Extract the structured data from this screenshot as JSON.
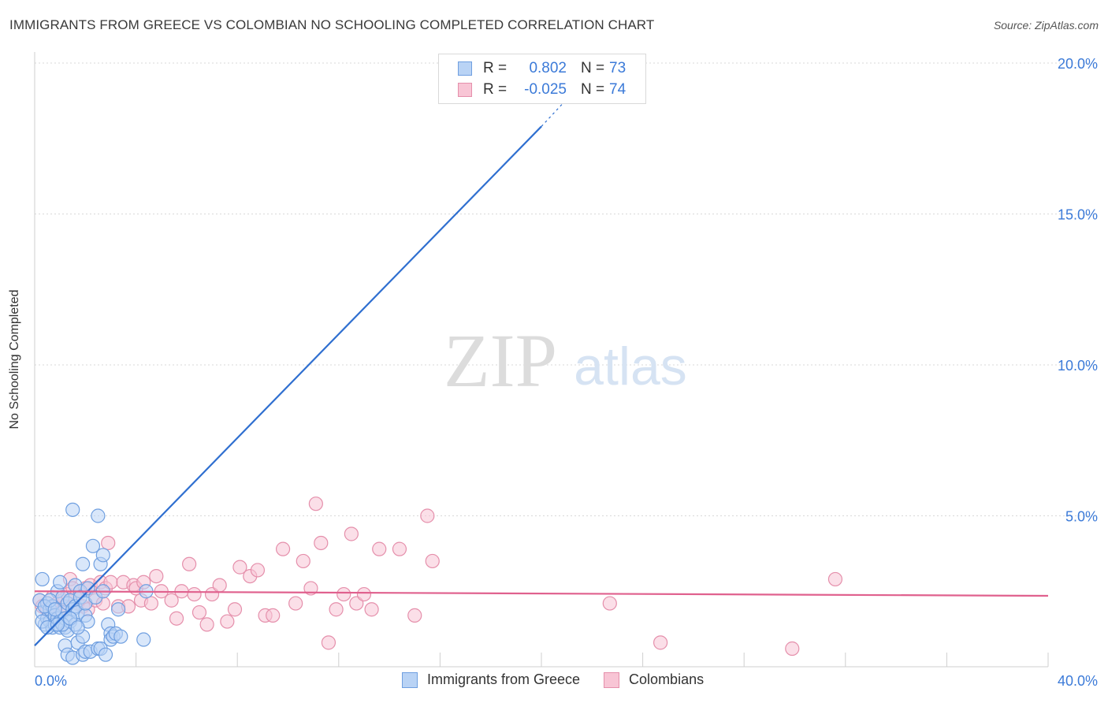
{
  "title": "IMMIGRANTS FROM GREECE VS COLOMBIAN NO SCHOOLING COMPLETED CORRELATION CHART",
  "source": "Source: ZipAtlas.com",
  "legend": {
    "r_label": "R =",
    "n_label": "N =",
    "rows": [
      {
        "r": "0.802",
        "n": "73",
        "fill": "#b9d3f5",
        "stroke": "#6f9fe0"
      },
      {
        "r": "-0.025",
        "n": "74",
        "fill": "#f8c5d5",
        "stroke": "#e58fab"
      }
    ]
  },
  "watermark": {
    "zip": "ZIP",
    "atlas": "atlas"
  },
  "bottom_legend": [
    {
      "label": "Immigrants from Greece",
      "fill": "#b9d3f5",
      "stroke": "#6f9fe0"
    },
    {
      "label": "Colombians",
      "fill": "#f8c5d5",
      "stroke": "#e58fab"
    }
  ],
  "chart_data": {
    "type": "scatter",
    "title": "IMMIGRANTS FROM GREECE VS COLOMBIAN NO SCHOOLING COMPLETED CORRELATION CHART",
    "xlabel": "",
    "ylabel": "No Schooling Completed",
    "xlim": [
      0,
      40
    ],
    "ylim": [
      0,
      20
    ],
    "x_tick_labels": [
      {
        "value": 0,
        "label": "0.0%"
      },
      {
        "value": 40,
        "label": "40.0%"
      }
    ],
    "y_ticks": [
      {
        "value": 5,
        "label": "5.0%"
      },
      {
        "value": 10,
        "label": "10.0%"
      },
      {
        "value": 15,
        "label": "15.0%"
      },
      {
        "value": 20,
        "label": "20.0%"
      }
    ],
    "x_grid": [
      4,
      8,
      12,
      16,
      20,
      24,
      28,
      32,
      36,
      40
    ],
    "series": [
      {
        "name": "Immigrants from Greece",
        "color": "#6f9fe0",
        "fill": "#b9d3f5",
        "line_color": "#2f6fd0",
        "trend": {
          "x0": 0,
          "y0": 0.7,
          "x1": 20.0,
          "y1": 17.9,
          "dash_to_x": 21.0,
          "dash_to_y": 18.8
        },
        "points": [
          [
            0.2,
            2.2
          ],
          [
            0.3,
            1.8
          ],
          [
            0.3,
            2.9
          ],
          [
            0.4,
            1.4
          ],
          [
            0.5,
            1.6
          ],
          [
            0.5,
            2.1
          ],
          [
            0.6,
            1.9
          ],
          [
            0.6,
            1.5
          ],
          [
            0.7,
            1.3
          ],
          [
            0.7,
            2.0
          ],
          [
            0.8,
            1.7
          ],
          [
            0.8,
            1.4
          ],
          [
            0.9,
            1.6
          ],
          [
            0.9,
            2.5
          ],
          [
            1.0,
            1.3
          ],
          [
            1.0,
            2.8
          ],
          [
            1.0,
            1.5
          ],
          [
            1.1,
            1.8
          ],
          [
            1.1,
            2.3
          ],
          [
            1.2,
            1.3
          ],
          [
            1.2,
            0.7
          ],
          [
            1.2,
            1.6
          ],
          [
            1.3,
            1.2
          ],
          [
            1.3,
            2.1
          ],
          [
            1.3,
            0.4
          ],
          [
            1.4,
            1.5
          ],
          [
            1.4,
            2.2
          ],
          [
            1.5,
            5.2
          ],
          [
            1.5,
            1.9
          ],
          [
            1.5,
            0.3
          ],
          [
            1.6,
            2.7
          ],
          [
            1.6,
            1.4
          ],
          [
            1.6,
            2.0
          ],
          [
            1.7,
            1.8
          ],
          [
            1.7,
            0.8
          ],
          [
            1.8,
            2.5
          ],
          [
            1.8,
            2.3
          ],
          [
            1.9,
            3.4
          ],
          [
            1.9,
            0.4
          ],
          [
            1.9,
            1.0
          ],
          [
            2.0,
            1.7
          ],
          [
            2.0,
            2.1
          ],
          [
            2.0,
            0.5
          ],
          [
            2.1,
            2.6
          ],
          [
            2.1,
            1.5
          ],
          [
            2.2,
            0.5
          ],
          [
            2.3,
            4.0
          ],
          [
            2.4,
            2.3
          ],
          [
            2.5,
            0.6
          ],
          [
            2.5,
            5.0
          ],
          [
            2.6,
            0.6
          ],
          [
            2.6,
            3.4
          ],
          [
            2.7,
            3.7
          ],
          [
            2.7,
            2.5
          ],
          [
            2.8,
            0.4
          ],
          [
            2.9,
            1.4
          ],
          [
            3.0,
            1.1
          ],
          [
            3.0,
            0.9
          ],
          [
            3.1,
            1.0
          ],
          [
            3.2,
            1.1
          ],
          [
            3.3,
            1.9
          ],
          [
            3.4,
            1.0
          ],
          [
            4.3,
            0.9
          ],
          [
            4.4,
            2.5
          ],
          [
            0.4,
            2.0
          ],
          [
            0.6,
            2.2
          ],
          [
            0.8,
            1.9
          ],
          [
            1.1,
            1.4
          ],
          [
            1.4,
            1.6
          ],
          [
            1.7,
            1.3
          ],
          [
            0.3,
            1.5
          ],
          [
            0.5,
            1.3
          ],
          [
            0.9,
            1.4
          ]
        ]
      },
      {
        "name": "Colombians",
        "color": "#e58fab",
        "fill": "#f8c5d5",
        "line_color": "#e0618e",
        "trend": {
          "x0": 0,
          "y0": 2.5,
          "x1": 40,
          "y1": 2.35
        },
        "points": [
          [
            0.2,
            2.2
          ],
          [
            0.3,
            2.0
          ],
          [
            0.5,
            1.9
          ],
          [
            0.6,
            1.7
          ],
          [
            0.7,
            2.3
          ],
          [
            0.8,
            2.0
          ],
          [
            0.9,
            2.1
          ],
          [
            1.0,
            1.8
          ],
          [
            1.1,
            2.2
          ],
          [
            1.2,
            2.0
          ],
          [
            1.3,
            2.4
          ],
          [
            1.4,
            2.9
          ],
          [
            1.5,
            2.6
          ],
          [
            1.6,
            2.3
          ],
          [
            1.7,
            2.1
          ],
          [
            1.8,
            2.5
          ],
          [
            1.9,
            2.0
          ],
          [
            2.0,
            2.6
          ],
          [
            2.1,
            1.9
          ],
          [
            2.2,
            2.7
          ],
          [
            2.4,
            2.2
          ],
          [
            2.6,
            2.8
          ],
          [
            2.7,
            2.1
          ],
          [
            2.8,
            2.6
          ],
          [
            2.9,
            4.1
          ],
          [
            3.0,
            2.8
          ],
          [
            3.3,
            2.0
          ],
          [
            3.5,
            2.8
          ],
          [
            3.7,
            2.0
          ],
          [
            3.9,
            2.7
          ],
          [
            4.0,
            2.6
          ],
          [
            4.2,
            2.2
          ],
          [
            4.3,
            2.8
          ],
          [
            4.6,
            2.1
          ],
          [
            4.8,
            3.0
          ],
          [
            5.0,
            2.5
          ],
          [
            5.4,
            2.2
          ],
          [
            5.6,
            1.6
          ],
          [
            5.8,
            2.5
          ],
          [
            6.1,
            3.4
          ],
          [
            6.3,
            2.4
          ],
          [
            6.5,
            1.8
          ],
          [
            6.8,
            1.4
          ],
          [
            7.0,
            2.4
          ],
          [
            7.3,
            2.7
          ],
          [
            7.6,
            1.5
          ],
          [
            7.9,
            1.9
          ],
          [
            8.1,
            3.3
          ],
          [
            8.5,
            3.0
          ],
          [
            8.8,
            3.2
          ],
          [
            9.1,
            1.7
          ],
          [
            9.4,
            1.7
          ],
          [
            9.8,
            3.9
          ],
          [
            10.3,
            2.1
          ],
          [
            10.6,
            3.5
          ],
          [
            10.9,
            2.6
          ],
          [
            11.1,
            5.4
          ],
          [
            11.3,
            4.1
          ],
          [
            11.6,
            0.8
          ],
          [
            11.9,
            1.9
          ],
          [
            12.2,
            2.4
          ],
          [
            12.5,
            4.4
          ],
          [
            12.7,
            2.1
          ],
          [
            13.0,
            2.4
          ],
          [
            13.3,
            1.9
          ],
          [
            13.6,
            3.9
          ],
          [
            14.4,
            3.9
          ],
          [
            15.0,
            1.7
          ],
          [
            15.5,
            5.0
          ],
          [
            15.7,
            3.5
          ],
          [
            22.7,
            2.1
          ],
          [
            24.7,
            0.8
          ],
          [
            29.9,
            0.6
          ],
          [
            31.6,
            2.9
          ]
        ]
      }
    ]
  }
}
